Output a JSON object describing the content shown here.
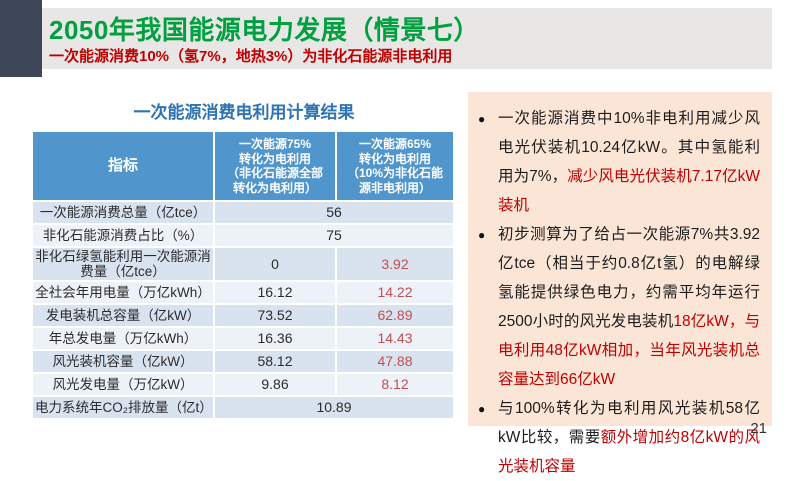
{
  "header": {
    "title": "2050年我国能源电力发展（情景七）",
    "subtitle": "一次能源消费10%（氢7%，地热3%）为非化石能源非电利用"
  },
  "table": {
    "title": "一次能源消费电利用计算结果",
    "columns": [
      "指标",
      "一次能源75%\n转化为电利用\n（非化石能源全部\n转化为电利用）",
      "一次能源65%\n转化为电利用\n（10%为非化石能\n源非电利用）"
    ],
    "rows": [
      {
        "label": "一次能源消费总量（亿tce）",
        "merged": true,
        "value": "56"
      },
      {
        "label": "非化石能源消费占比（%）",
        "merged": true,
        "value": "75"
      },
      {
        "label": "非化石绿氢能利用一次能源消费量（亿tce）",
        "merged": false,
        "v1": "0",
        "v2": "3.92"
      },
      {
        "label": "全社会年用电量（万亿kWh）",
        "merged": false,
        "v1": "16.12",
        "v2": "14.22"
      },
      {
        "label": "发电装机总容量（亿kW）",
        "merged": false,
        "v1": "73.52",
        "v2": "62.89"
      },
      {
        "label": "年总发电量（万亿kWh）",
        "merged": false,
        "v1": "16.36",
        "v2": "14.43"
      },
      {
        "label": "风光装机容量（亿kW）",
        "merged": false,
        "v1": "58.12",
        "v2": "47.88"
      },
      {
        "label": "风光发电量（万亿kW）",
        "merged": false,
        "v1": "9.86",
        "v2": "8.12"
      },
      {
        "label": "电力系统年CO₂排放量（亿t）",
        "merged": true,
        "value": "10.89"
      }
    ]
  },
  "panel": {
    "bullets": [
      {
        "segments": [
          {
            "text": "一次能源消费中10%非电利用减少风电光伏装机10.24亿kW。其中氢能利用为7%，",
            "red": false
          },
          {
            "text": "减少风电光伏装机7.17亿kW装机",
            "red": true
          }
        ]
      },
      {
        "segments": [
          {
            "text": "初步测算为了给占一次能源7%共3.92亿tce（相当于约0.8亿t氢）的电解绿氢能提供绿色电力，约需平均年运行2500小时的风光发电装机",
            "red": false
          },
          {
            "text": "18亿kW，与电利用48亿kW相加，当年风光装机总容量达到66亿kW",
            "red": true
          }
        ]
      },
      {
        "segments": [
          {
            "text": "与100%转化为电利用风光装机58亿kW比较，需要",
            "red": false
          },
          {
            "text": "额外增加约8亿kW的风光装机容量",
            "red": true
          }
        ]
      }
    ],
    "bullet_glyph": "●"
  },
  "page_number": "21",
  "colors": {
    "title_green": "#00a041",
    "accent_red": "#c00000",
    "value_red": "#c0504d",
    "table_title_blue": "#2e74b5",
    "table_header_blue": "#5095cc",
    "row_odd": "#d9e3f0",
    "row_even": "#edf1f8",
    "panel_bg": "#fbe5d6",
    "band_gray": "#e8e7e6",
    "dark_block": "#3d4757"
  }
}
